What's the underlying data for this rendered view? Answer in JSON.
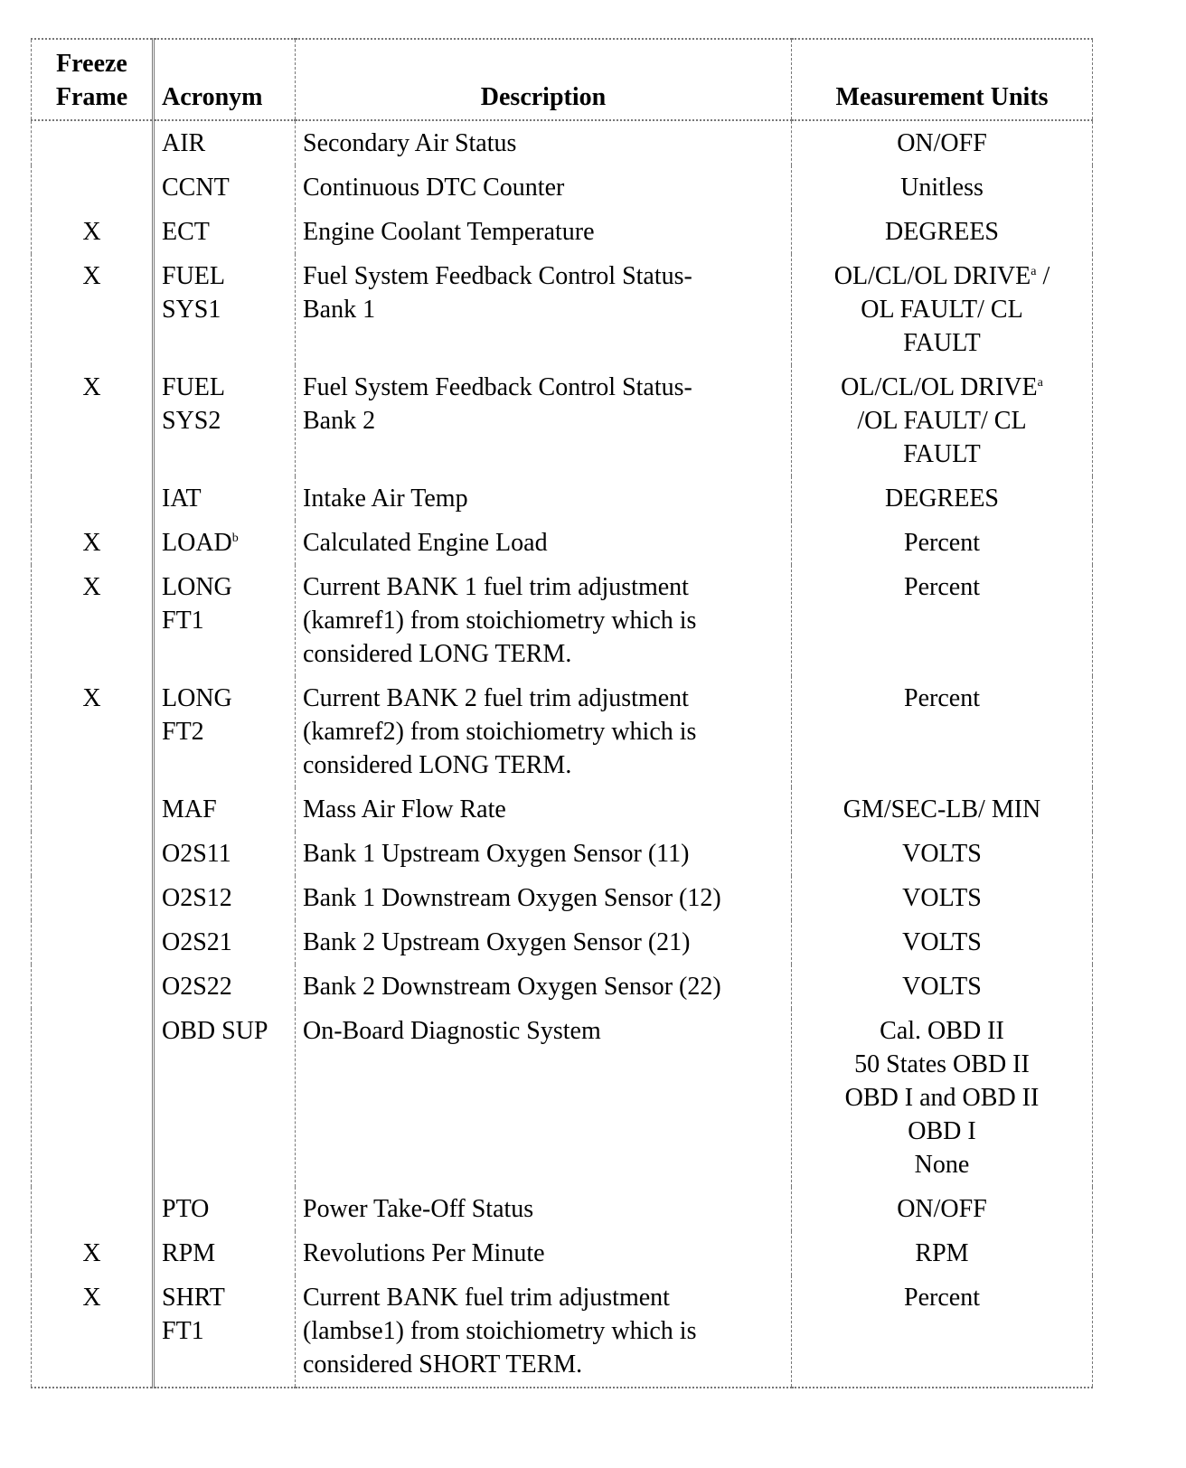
{
  "headers": {
    "freeze_frame": "Freeze\nFrame",
    "acronym": "Acronym",
    "description": "Description",
    "units": "Measurement Units"
  },
  "rows": [
    {
      "freeze": "",
      "acronym": "AIR",
      "description": "Secondary Air Status",
      "units": "ON/OFF"
    },
    {
      "freeze": "",
      "acronym": "CCNT",
      "description": "Continuous DTC Counter",
      "units": "Unitless"
    },
    {
      "freeze": "X",
      "acronym": "ECT",
      "description": "Engine Coolant Temperature",
      "units": "DEGREES"
    },
    {
      "freeze": "X",
      "acronym": "FUEL\nSYS1",
      "description": "Fuel System Feedback Control Status-\nBank 1",
      "units": "OL/CL/OL DRIVE",
      "units_sup": "a",
      "units_after": " /\nOL FAULT/ CL\nFAULT"
    },
    {
      "freeze": "X",
      "acronym": "FUEL\nSYS2",
      "description": "Fuel System Feedback Control Status-\nBank 2",
      "units": "OL/CL/OL DRIVE",
      "units_sup": "a",
      "units_after": "\n/OL FAULT/ CL\nFAULT"
    },
    {
      "freeze": "",
      "acronym": "IAT",
      "description": "Intake Air Temp",
      "units": "DEGREES"
    },
    {
      "freeze": "X",
      "acronym": "LOAD",
      "acronym_sup": "b",
      "description": "Calculated Engine Load",
      "units": "Percent"
    },
    {
      "freeze": "X",
      "acronym": "LONG\nFT1",
      "description": "Current BANK 1 fuel trim adjustment\n(kamref1) from stoichiometry which is\nconsidered LONG TERM.",
      "units": "Percent"
    },
    {
      "freeze": "X",
      "acronym": "LONG\nFT2",
      "description": "Current BANK 2 fuel trim adjustment\n(kamref2) from stoichiometry which is\nconsidered LONG TERM.",
      "units": "Percent"
    },
    {
      "freeze": "",
      "acronym": "MAF",
      "description": "Mass Air Flow Rate",
      "units": "GM/SEC-LB/ MIN"
    },
    {
      "freeze": "",
      "acronym": "O2S11",
      "description": "Bank 1 Upstream Oxygen Sensor (11)",
      "units": "VOLTS"
    },
    {
      "freeze": "",
      "acronym": "O2S12",
      "description": "Bank 1 Downstream Oxygen Sensor (12)",
      "units": "VOLTS"
    },
    {
      "freeze": "",
      "acronym": "O2S21",
      "description": "Bank 2 Upstream Oxygen Sensor (21)",
      "units": "VOLTS"
    },
    {
      "freeze": "",
      "acronym": "O2S22",
      "description": "Bank 2 Downstream Oxygen Sensor (22)",
      "units": "VOLTS"
    },
    {
      "freeze": "",
      "acronym": "OBD SUP",
      "description": "On-Board Diagnostic System",
      "units": "Cal. OBD II\n50 States OBD II\nOBD I and OBD II\nOBD I\nNone"
    },
    {
      "freeze": "",
      "acronym": "PTO",
      "description": "Power Take-Off Status",
      "units": "ON/OFF"
    },
    {
      "freeze": "X",
      "acronym": "RPM",
      "description": "Revolutions Per Minute",
      "units": "RPM"
    },
    {
      "freeze": "X",
      "acronym": "SHRT\nFT1",
      "description": "Current BANK fuel trim adjustment\n(lambse1) from stoichiometry which is\nconsidered SHORT TERM.",
      "units": "Percent"
    }
  ]
}
